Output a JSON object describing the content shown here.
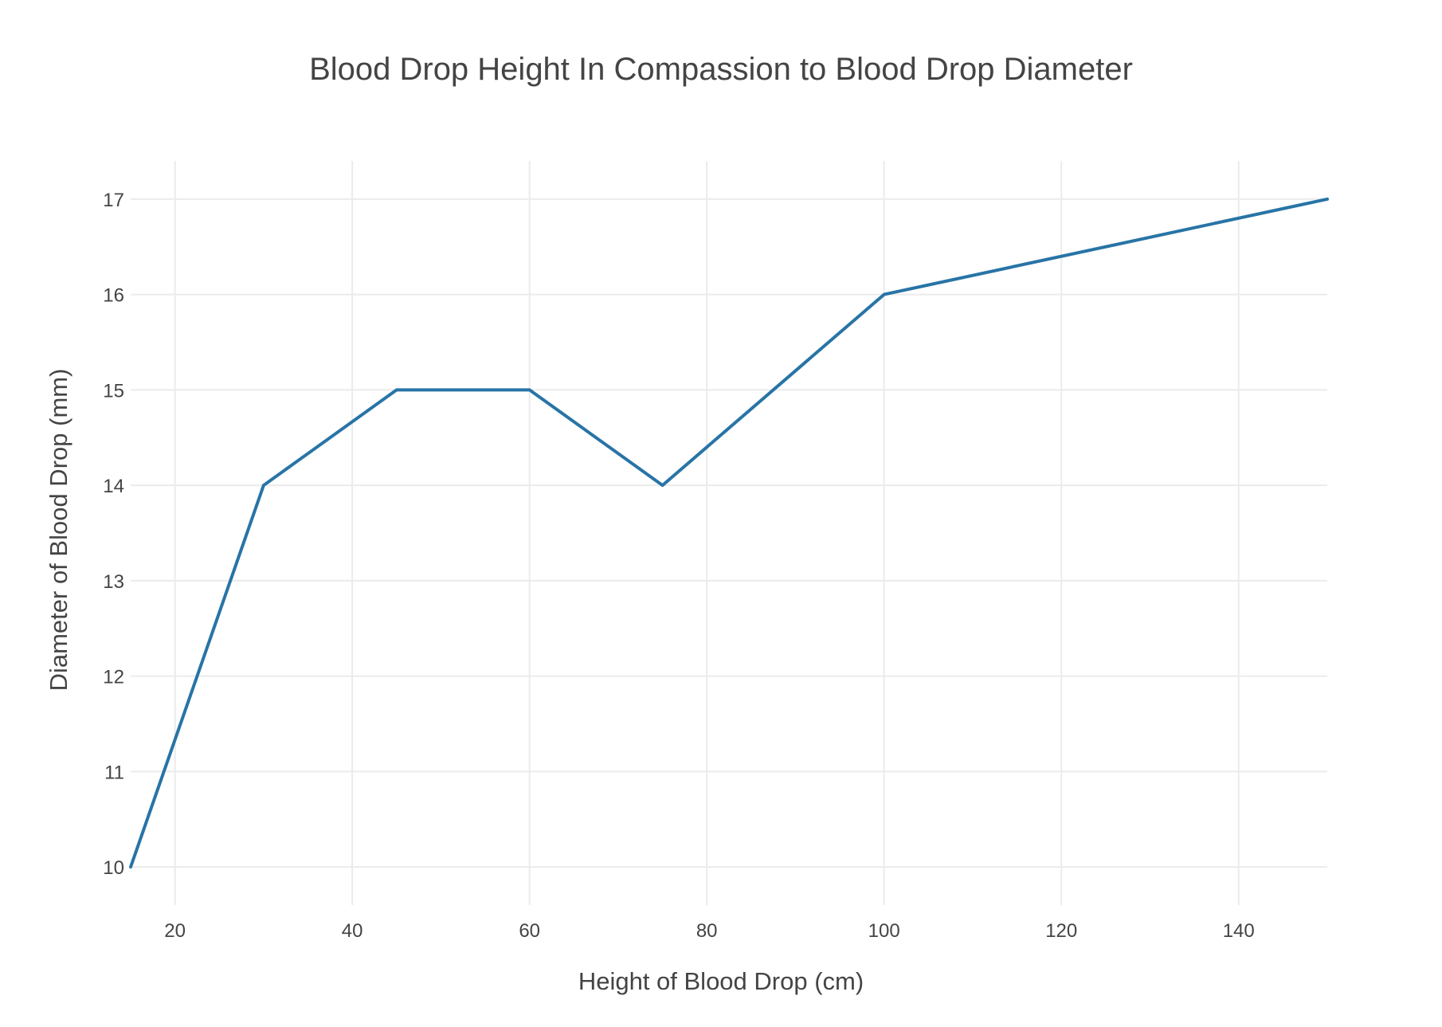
{
  "chart_data": {
    "type": "line",
    "title": "Blood Drop Height In Compassion to Blood Drop Diameter",
    "xlabel": "Height of Blood Drop (cm)",
    "ylabel": "Diameter of Blood Drop (mm)",
    "x": [
      15,
      30,
      45,
      60,
      75,
      100,
      150
    ],
    "series": [
      {
        "values": [
          10,
          14,
          15,
          15,
          14,
          16,
          17
        ]
      }
    ],
    "xlim": [
      15,
      150
    ],
    "ylim": [
      9.6,
      17.4
    ],
    "xticks": [
      20,
      40,
      60,
      80,
      100,
      120,
      140
    ],
    "yticks": [
      10,
      11,
      12,
      13,
      14,
      15,
      16,
      17
    ],
    "grid": true,
    "legend": "none",
    "colors": {
      "line": "#2874a6",
      "grid": "#ebebeb",
      "text": "#444444"
    }
  }
}
